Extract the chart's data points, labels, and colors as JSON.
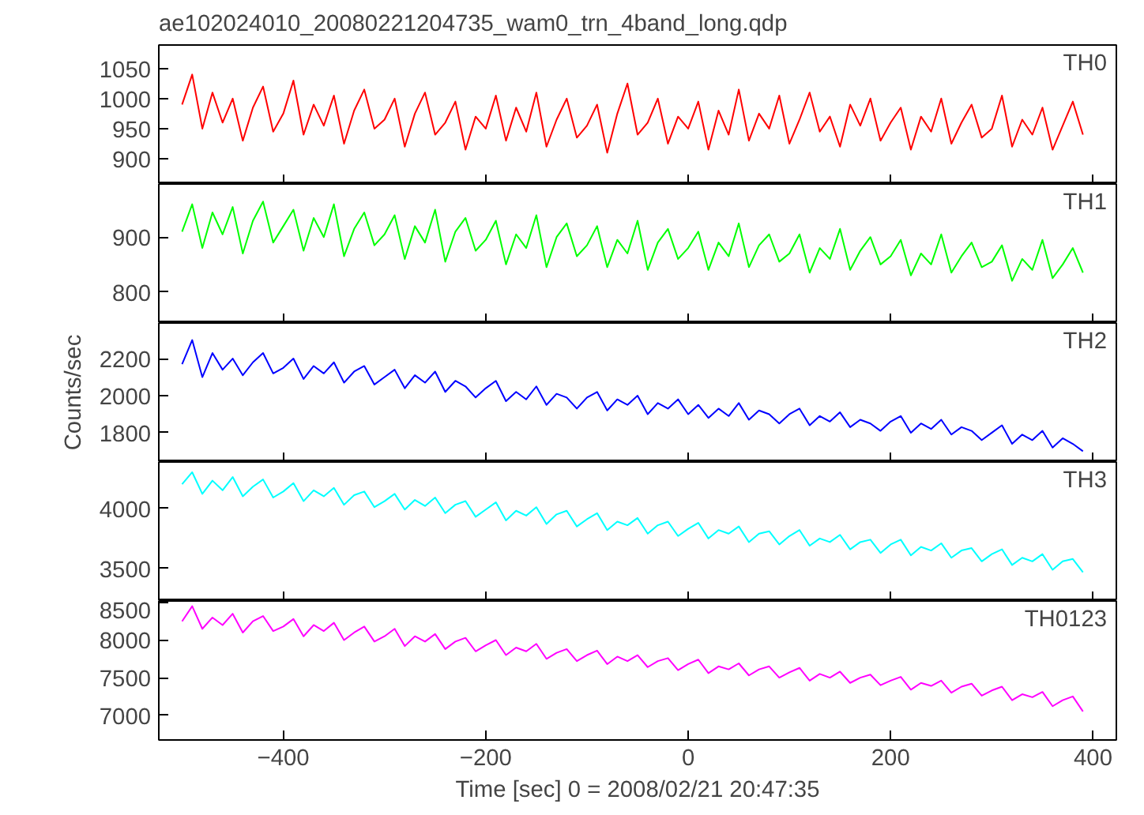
{
  "chart_data": [
    {
      "type": "line",
      "title": "ae102024010_20080221204735_wam0_trn_4band_long.qdp",
      "annotations": [
        "TH0"
      ],
      "tick_labels": "y",
      "xlim": [
        -523,
        423
      ],
      "xticks": [
        -400,
        -200,
        0,
        200,
        400
      ],
      "ylim": [
        858,
        1089
      ],
      "yticks": [
        900,
        950,
        1000,
        1050
      ],
      "color": "#ff0000",
      "x": [
        -500,
        -490,
        -480,
        -470,
        -460,
        -450,
        -440,
        -430,
        -420,
        -410,
        -400,
        -390,
        -380,
        -370,
        -360,
        -350,
        -340,
        -330,
        -320,
        -310,
        -300,
        -290,
        -280,
        -270,
        -260,
        -250,
        -240,
        -230,
        -220,
        -210,
        -200,
        -190,
        -180,
        -170,
        -160,
        -150,
        -140,
        -130,
        -120,
        -110,
        -100,
        -90,
        -80,
        -70,
        -60,
        -50,
        -40,
        -30,
        -20,
        -10,
        0,
        10,
        20,
        30,
        40,
        50,
        60,
        70,
        80,
        90,
        100,
        110,
        120,
        130,
        140,
        150,
        160,
        170,
        180,
        190,
        200,
        210,
        220,
        230,
        240,
        250,
        260,
        270,
        280,
        290,
        300,
        310,
        320,
        330,
        340,
        350,
        360,
        370,
        380,
        390
      ],
      "values": [
        990,
        1040,
        950,
        1010,
        960,
        1000,
        930,
        985,
        1020,
        945,
        975,
        1030,
        940,
        990,
        955,
        1005,
        925,
        980,
        1015,
        950,
        965,
        1000,
        920,
        975,
        1010,
        940,
        960,
        995,
        915,
        970,
        950,
        1005,
        930,
        985,
        945,
        1010,
        920,
        965,
        1000,
        935,
        955,
        990,
        910,
        975,
        1025,
        940,
        960,
        1000,
        925,
        970,
        950,
        995,
        915,
        980,
        940,
        1015,
        930,
        975,
        950,
        1005,
        925,
        965,
        1010,
        945,
        970,
        920,
        990,
        955,
        1000,
        930,
        960,
        985,
        915,
        970,
        945,
        1000,
        925,
        960,
        990,
        935,
        950,
        1005,
        920,
        965,
        940,
        985,
        915,
        955,
        995,
        940
      ]
    },
    {
      "type": "line",
      "annotations": [
        "TH1"
      ],
      "tick_labels": "y",
      "xlim": [
        -523,
        423
      ],
      "xticks": [
        -400,
        -200,
        0,
        200,
        400
      ],
      "ylim": [
        743,
        997
      ],
      "yticks": [
        800,
        900
      ],
      "color": "#00ff00",
      "x": [
        -500,
        -490,
        -480,
        -470,
        -460,
        -450,
        -440,
        -430,
        -420,
        -410,
        -400,
        -390,
        -380,
        -370,
        -360,
        -350,
        -340,
        -330,
        -320,
        -310,
        -300,
        -290,
        -280,
        -270,
        -260,
        -250,
        -240,
        -230,
        -220,
        -210,
        -200,
        -190,
        -180,
        -170,
        -160,
        -150,
        -140,
        -130,
        -120,
        -110,
        -100,
        -90,
        -80,
        -70,
        -60,
        -50,
        -40,
        -30,
        -20,
        -10,
        0,
        10,
        20,
        30,
        40,
        50,
        60,
        70,
        80,
        90,
        100,
        110,
        120,
        130,
        140,
        150,
        160,
        170,
        180,
        190,
        200,
        210,
        220,
        230,
        240,
        250,
        260,
        270,
        280,
        290,
        300,
        310,
        320,
        330,
        340,
        350,
        360,
        370,
        380,
        390
      ],
      "values": [
        910,
        960,
        880,
        945,
        905,
        955,
        870,
        930,
        965,
        890,
        920,
        950,
        875,
        935,
        900,
        960,
        865,
        915,
        945,
        885,
        905,
        940,
        860,
        920,
        890,
        950,
        855,
        910,
        935,
        875,
        895,
        930,
        850,
        905,
        880,
        940,
        845,
        900,
        925,
        865,
        885,
        920,
        845,
        895,
        870,
        930,
        840,
        890,
        915,
        860,
        880,
        910,
        840,
        890,
        865,
        925,
        845,
        885,
        905,
        855,
        870,
        905,
        835,
        880,
        860,
        915,
        840,
        875,
        900,
        850,
        865,
        895,
        830,
        870,
        850,
        905,
        835,
        865,
        890,
        845,
        855,
        885,
        820,
        860,
        840,
        895,
        825,
        850,
        880,
        835
      ]
    },
    {
      "type": "line",
      "ylabel": "Counts/sec",
      "annotations": [
        "TH2"
      ],
      "tick_labels": "y",
      "xlim": [
        -523,
        423
      ],
      "xticks": [
        -400,
        -200,
        0,
        200,
        400
      ],
      "ylim": [
        1642,
        2392
      ],
      "yticks": [
        1800,
        2000,
        2200
      ],
      "color": "#0000ff",
      "x": [
        -500,
        -490,
        -480,
        -470,
        -460,
        -450,
        -440,
        -430,
        -420,
        -410,
        -400,
        -390,
        -380,
        -370,
        -360,
        -350,
        -340,
        -330,
        -320,
        -310,
        -300,
        -290,
        -280,
        -270,
        -260,
        -250,
        -240,
        -230,
        -220,
        -210,
        -200,
        -190,
        -180,
        -170,
        -160,
        -150,
        -140,
        -130,
        -120,
        -110,
        -100,
        -90,
        -80,
        -70,
        -60,
        -50,
        -40,
        -30,
        -20,
        -10,
        0,
        10,
        20,
        30,
        40,
        50,
        60,
        70,
        80,
        90,
        100,
        110,
        120,
        130,
        140,
        150,
        160,
        170,
        180,
        190,
        200,
        210,
        220,
        230,
        240,
        250,
        260,
        270,
        280,
        290,
        300,
        310,
        320,
        330,
        340,
        350,
        360,
        370,
        380,
        390
      ],
      "values": [
        2170,
        2300,
        2100,
        2230,
        2140,
        2200,
        2110,
        2180,
        2230,
        2120,
        2150,
        2200,
        2090,
        2160,
        2120,
        2180,
        2070,
        2130,
        2160,
        2060,
        2100,
        2140,
        2040,
        2110,
        2070,
        2130,
        2020,
        2080,
        2050,
        1990,
        2040,
        2080,
        1970,
        2020,
        1980,
        2050,
        1950,
        2010,
        1990,
        1930,
        1990,
        2020,
        1920,
        1980,
        1950,
        2000,
        1900,
        1960,
        1930,
        1980,
        1900,
        1950,
        1880,
        1930,
        1890,
        1960,
        1870,
        1920,
        1900,
        1850,
        1900,
        1930,
        1840,
        1890,
        1860,
        1910,
        1830,
        1870,
        1850,
        1810,
        1860,
        1890,
        1800,
        1850,
        1820,
        1870,
        1790,
        1830,
        1810,
        1760,
        1800,
        1840,
        1740,
        1790,
        1760,
        1810,
        1720,
        1770,
        1740,
        1700
      ]
    },
    {
      "type": "line",
      "annotations": [
        "TH3"
      ],
      "tick_labels": "y",
      "xlim": [
        -523,
        423
      ],
      "xticks": [
        -400,
        -200,
        0,
        200,
        400
      ],
      "ylim": [
        3231,
        4385
      ],
      "yticks": [
        3500,
        4000
      ],
      "color": "#00ffff",
      "x": [
        -500,
        -490,
        -480,
        -470,
        -460,
        -450,
        -440,
        -430,
        -420,
        -410,
        -400,
        -390,
        -380,
        -370,
        -360,
        -350,
        -340,
        -330,
        -320,
        -310,
        -300,
        -290,
        -280,
        -270,
        -260,
        -250,
        -240,
        -230,
        -220,
        -210,
        -200,
        -190,
        -180,
        -170,
        -160,
        -150,
        -140,
        -130,
        -120,
        -110,
        -100,
        -90,
        -80,
        -70,
        -60,
        -50,
        -40,
        -30,
        -20,
        -10,
        0,
        10,
        20,
        30,
        40,
        50,
        60,
        70,
        80,
        90,
        100,
        110,
        120,
        130,
        140,
        150,
        160,
        170,
        180,
        190,
        200,
        210,
        220,
        230,
        240,
        250,
        260,
        270,
        280,
        290,
        300,
        310,
        320,
        330,
        340,
        350,
        360,
        370,
        380,
        390
      ],
      "values": [
        4200,
        4300,
        4120,
        4230,
        4150,
        4260,
        4100,
        4180,
        4240,
        4090,
        4140,
        4210,
        4060,
        4150,
        4100,
        4170,
        4030,
        4110,
        4140,
        4010,
        4060,
        4120,
        3990,
        4070,
        4020,
        4090,
        3960,
        4030,
        4060,
        3930,
        3990,
        4050,
        3900,
        3980,
        3940,
        4010,
        3870,
        3950,
        3980,
        3850,
        3910,
        3960,
        3820,
        3890,
        3860,
        3920,
        3790,
        3860,
        3890,
        3770,
        3830,
        3880,
        3750,
        3820,
        3790,
        3850,
        3720,
        3790,
        3810,
        3700,
        3770,
        3820,
        3690,
        3750,
        3720,
        3780,
        3660,
        3720,
        3740,
        3630,
        3700,
        3740,
        3610,
        3680,
        3650,
        3710,
        3590,
        3650,
        3670,
        3560,
        3620,
        3660,
        3530,
        3590,
        3560,
        3620,
        3490,
        3560,
        3580,
        3470
      ]
    },
    {
      "type": "line",
      "xlabel": "Time [sec] 0 = 2008/02/21 20:47:35",
      "annotations": [
        "TH0123"
      ],
      "xlim": [
        -523,
        423
      ],
      "xticks": [
        -400,
        -200,
        0,
        200,
        400
      ],
      "ylim": [
        6671,
        8520
      ],
      "yticks": [
        7000,
        7500,
        8000,
        8500
      ],
      "color": "#ff00ff",
      "x": [
        -500,
        -490,
        -480,
        -470,
        -460,
        -450,
        -440,
        -430,
        -420,
        -410,
        -400,
        -390,
        -380,
        -370,
        -360,
        -350,
        -340,
        -330,
        -320,
        -310,
        -300,
        -290,
        -280,
        -270,
        -260,
        -250,
        -240,
        -230,
        -220,
        -210,
        -200,
        -190,
        -180,
        -170,
        -160,
        -150,
        -140,
        -130,
        -120,
        -110,
        -100,
        -90,
        -80,
        -70,
        -60,
        -50,
        -40,
        -30,
        -20,
        -10,
        0,
        10,
        20,
        30,
        40,
        50,
        60,
        70,
        80,
        90,
        100,
        110,
        120,
        130,
        140,
        150,
        160,
        170,
        180,
        190,
        200,
        210,
        220,
        230,
        240,
        250,
        260,
        270,
        280,
        290,
        300,
        310,
        320,
        330,
        340,
        350,
        360,
        370,
        380,
        390
      ],
      "values": [
        8250,
        8450,
        8150,
        8300,
        8200,
        8350,
        8100,
        8250,
        8320,
        8120,
        8180,
        8280,
        8050,
        8200,
        8120,
        8230,
        8000,
        8100,
        8180,
        7980,
        8050,
        8150,
        7920,
        8050,
        7980,
        8080,
        7880,
        7980,
        8030,
        7850,
        7930,
        8000,
        7800,
        7900,
        7850,
        7950,
        7750,
        7830,
        7880,
        7720,
        7800,
        7860,
        7680,
        7780,
        7720,
        7800,
        7640,
        7720,
        7760,
        7600,
        7680,
        7740,
        7560,
        7650,
        7610,
        7690,
        7530,
        7610,
        7650,
        7500,
        7570,
        7630,
        7460,
        7550,
        7500,
        7580,
        7430,
        7500,
        7540,
        7400,
        7460,
        7510,
        7340,
        7430,
        7390,
        7460,
        7300,
        7380,
        7420,
        7260,
        7330,
        7380,
        7200,
        7280,
        7240,
        7310,
        7120,
        7200,
        7250,
        7050
      ]
    }
  ]
}
